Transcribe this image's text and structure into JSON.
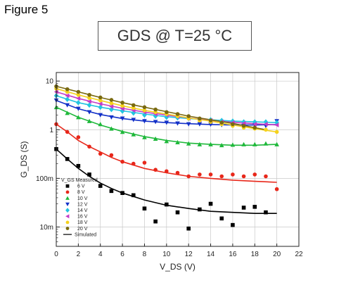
{
  "figure_label": "Figure 5",
  "chart_data": {
    "type": "scatter",
    "title": "GDS @ T=25 °C",
    "xlabel": "V_DS (V)",
    "ylabel": "G_DS (S)",
    "xlim": [
      0,
      22
    ],
    "ylim": [
      0.004,
      15
    ],
    "y_scale": "log",
    "x_ticks": [
      0,
      2,
      4,
      6,
      8,
      10,
      12,
      14,
      16,
      18,
      20,
      22
    ],
    "y_ticks": [
      {
        "value": 0.01,
        "label": "10m"
      },
      {
        "value": 0.1,
        "label": "100m"
      },
      {
        "value": 1,
        "label": "1"
      },
      {
        "value": 10,
        "label": "10"
      }
    ],
    "grid": true,
    "legend_title": "V_GS Measured",
    "legend_simulated": "Simulated",
    "series": [
      {
        "name": "6 V",
        "color": "#000000",
        "marker": "square",
        "x": [
          0,
          1,
          2,
          3,
          4,
          5,
          6,
          7,
          8,
          9,
          10,
          11,
          12,
          13,
          14,
          15,
          16,
          17,
          18,
          19
        ],
        "y": [
          0.4,
          0.25,
          0.18,
          0.12,
          0.07,
          0.055,
          0.05,
          0.045,
          0.024,
          0.013,
          0.029,
          0.02,
          0.0093,
          0.023,
          0.03,
          0.015,
          0.011,
          0.025,
          0.026,
          0.02
        ],
        "fit_x": [
          0,
          1,
          2,
          3,
          4,
          5,
          6,
          8,
          10,
          12,
          14,
          16,
          18,
          20
        ],
        "fit_y": [
          0.4,
          0.25,
          0.16,
          0.11,
          0.08,
          0.062,
          0.05,
          0.036,
          0.028,
          0.024,
          0.021,
          0.02,
          0.019,
          0.019
        ]
      },
      {
        "name": "8 V",
        "color": "#e8271a",
        "marker": "circle",
        "x": [
          0,
          1,
          2,
          3,
          4,
          5,
          6,
          7,
          8,
          9,
          10,
          11,
          12,
          13,
          14,
          15,
          16,
          17,
          18,
          19,
          20
        ],
        "y": [
          1.3,
          0.9,
          0.7,
          0.45,
          0.32,
          0.3,
          0.22,
          0.2,
          0.21,
          0.15,
          0.14,
          0.13,
          0.11,
          0.12,
          0.12,
          0.11,
          0.12,
          0.11,
          0.12,
          0.11,
          0.06
        ],
        "fit_x": [
          0,
          1,
          2,
          3,
          4,
          5,
          6,
          8,
          10,
          12,
          14,
          16,
          18,
          20
        ],
        "fit_y": [
          1.3,
          0.9,
          0.6,
          0.45,
          0.35,
          0.27,
          0.22,
          0.16,
          0.13,
          0.11,
          0.1,
          0.092,
          0.087,
          0.083
        ]
      },
      {
        "name": "10 V",
        "color": "#1eb83a",
        "marker": "triangle-up",
        "x": [
          0,
          1,
          2,
          3,
          4,
          5,
          6,
          7,
          8,
          9,
          10,
          11,
          12,
          13,
          14,
          15,
          16,
          17,
          18,
          19,
          20
        ],
        "y": [
          2.9,
          2.2,
          1.8,
          1.5,
          1.3,
          1.05,
          0.9,
          0.8,
          0.7,
          0.65,
          0.58,
          0.55,
          0.52,
          0.5,
          0.5,
          0.48,
          0.49,
          0.5,
          0.5,
          0.52,
          0.5
        ],
        "fit_x": [
          0,
          2,
          4,
          6,
          8,
          10,
          12,
          14,
          16,
          18,
          20
        ],
        "fit_y": [
          2.9,
          1.8,
          1.25,
          0.92,
          0.72,
          0.6,
          0.53,
          0.5,
          0.48,
          0.48,
          0.5
        ]
      },
      {
        "name": "12 V",
        "color": "#1230c8",
        "marker": "triangle-down",
        "x": [
          0,
          1,
          2,
          3,
          4,
          5,
          6,
          7,
          8,
          9,
          10,
          11,
          12,
          13,
          14,
          15,
          16,
          17,
          18,
          19,
          20
        ],
        "y": [
          4.0,
          3.2,
          2.7,
          2.3,
          2.0,
          1.8,
          1.7,
          1.6,
          1.5,
          1.45,
          1.4,
          1.35,
          1.3,
          1.3,
          1.28,
          1.25,
          1.25,
          1.2,
          1.25,
          1.2,
          1.5
        ],
        "fit_x": [
          0,
          2,
          4,
          6,
          8,
          10,
          12,
          14,
          16,
          18,
          20
        ],
        "fit_y": [
          4.0,
          2.7,
          2.05,
          1.7,
          1.5,
          1.4,
          1.33,
          1.28,
          1.25,
          1.25,
          1.28
        ]
      },
      {
        "name": "14 V",
        "color": "#22c4e0",
        "marker": "diamond",
        "x": [
          0,
          1,
          2,
          3,
          4,
          5,
          6,
          7,
          8,
          9,
          10,
          11,
          12,
          13,
          14,
          15,
          16,
          17,
          18,
          19,
          20
        ],
        "y": [
          5.0,
          4.2,
          3.6,
          3.2,
          2.9,
          2.6,
          2.4,
          2.2,
          2.0,
          1.9,
          1.8,
          1.75,
          1.7,
          1.65,
          1.6,
          1.55,
          1.5,
          1.45,
          1.45,
          1.45,
          1.4
        ],
        "fit_x": [
          0,
          2,
          4,
          6,
          8,
          10,
          12,
          14,
          16,
          18,
          20
        ],
        "fit_y": [
          5.0,
          3.6,
          2.9,
          2.45,
          2.1,
          1.85,
          1.7,
          1.6,
          1.5,
          1.45,
          1.4
        ]
      },
      {
        "name": "16 V",
        "color": "#c43cc8",
        "marker": "triangle-left",
        "x": [
          0,
          1,
          2,
          3,
          4,
          5,
          6,
          7,
          8,
          9,
          10,
          11,
          12,
          13,
          14,
          15,
          16,
          17,
          18,
          19,
          20
        ],
        "y": [
          6.0,
          5.0,
          4.4,
          3.8,
          3.4,
          3.0,
          2.7,
          2.5,
          2.3,
          2.1,
          2.0,
          1.85,
          1.7,
          1.6,
          1.55,
          1.45,
          1.4,
          1.35,
          1.3,
          1.3,
          1.25
        ],
        "fit_x": [
          0,
          2,
          4,
          6,
          8,
          10,
          12,
          14,
          16,
          18,
          20
        ],
        "fit_y": [
          6.0,
          4.4,
          3.4,
          2.75,
          2.3,
          2.0,
          1.75,
          1.55,
          1.42,
          1.33,
          1.25
        ]
      },
      {
        "name": "18 V",
        "color": "#f5d21c",
        "marker": "circle",
        "x": [
          0,
          1,
          2,
          3,
          4,
          5,
          6,
          7,
          8,
          9,
          10,
          11,
          12,
          13,
          14,
          15,
          16,
          17,
          18,
          19,
          20
        ],
        "y": [
          7.0,
          6.0,
          5.2,
          4.5,
          4.0,
          3.5,
          3.1,
          2.8,
          2.5,
          2.3,
          2.1,
          1.9,
          1.7,
          1.55,
          1.45,
          1.3,
          1.2,
          1.1,
          1.05,
          1.0,
          0.9
        ],
        "fit_x": [
          0,
          2,
          4,
          6,
          8,
          10,
          12,
          14,
          16,
          18,
          20
        ],
        "fit_y": [
          7.0,
          5.2,
          4.0,
          3.1,
          2.5,
          2.1,
          1.75,
          1.5,
          1.25,
          1.05,
          0.9
        ]
      },
      {
        "name": "20 V",
        "color": "#7a6a10",
        "marker": "circle",
        "x": [
          0,
          1,
          2,
          3,
          4,
          5,
          6,
          7,
          8,
          9,
          10,
          11,
          12,
          13,
          14,
          15,
          16,
          17,
          18
        ],
        "y": [
          7.8,
          6.8,
          6.0,
          5.2,
          4.6,
          4.1,
          3.6,
          3.2,
          2.9,
          2.6,
          2.3,
          2.1,
          1.9,
          1.7,
          1.55,
          1.4,
          1.3,
          1.2,
          1.1
        ],
        "fit_x": [
          0,
          2,
          4,
          6,
          8,
          10,
          12,
          14,
          16,
          18,
          19
        ],
        "fit_y": [
          7.8,
          6.0,
          4.6,
          3.6,
          2.9,
          2.35,
          1.9,
          1.6,
          1.35,
          1.1,
          1.0
        ]
      }
    ]
  }
}
